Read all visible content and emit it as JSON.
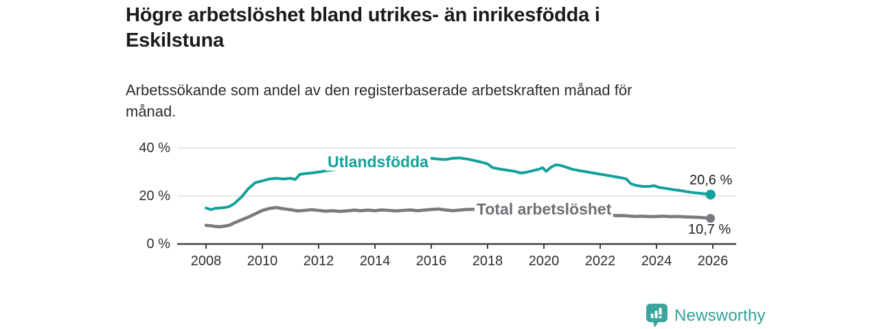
{
  "chart_data": {
    "type": "line",
    "title": "Högre arbetslöshet bland utrikes- än inrikesfödda i\nEskilstuna",
    "subtitle": "Arbetssökande som andel av den registerbaserade arbetskraften månad för\nmånad.",
    "grid": "horizontal",
    "legend_position": "inline-labels",
    "xlim": [
      2008,
      2026
    ],
    "ylim": [
      0,
      40
    ],
    "x_ticks": [
      2008,
      2010,
      2012,
      2014,
      2016,
      2018,
      2020,
      2022,
      2024,
      2026
    ],
    "y_ticks": [
      {
        "value": 0,
        "label": "0 %"
      },
      {
        "value": 20,
        "label": "20 %"
      },
      {
        "value": 40,
        "label": "40 %"
      }
    ],
    "series": [
      {
        "name": "Utlandsfödda",
        "color": "#12a19a",
        "end_value": 20.6,
        "end_label": "20,6 %",
        "points": [
          [
            2008.0,
            15.0
          ],
          [
            2008.17,
            14.3
          ],
          [
            2008.33,
            14.9
          ],
          [
            2008.5,
            15.0
          ],
          [
            2008.67,
            15.2
          ],
          [
            2008.83,
            15.6
          ],
          [
            2009.0,
            16.8
          ],
          [
            2009.25,
            19.5
          ],
          [
            2009.5,
            23.0
          ],
          [
            2009.75,
            25.6
          ],
          [
            2010.0,
            26.3
          ],
          [
            2010.25,
            27.1
          ],
          [
            2010.5,
            27.4
          ],
          [
            2010.75,
            27.1
          ],
          [
            2011.0,
            27.4
          ],
          [
            2011.17,
            26.9
          ],
          [
            2011.33,
            29.0
          ],
          [
            2011.5,
            29.3
          ],
          [
            2011.75,
            29.6
          ],
          [
            2012.0,
            30.0
          ],
          [
            2012.25,
            30.5
          ],
          [
            2012.5,
            30.9
          ],
          [
            2012.75,
            31.3
          ],
          [
            2013.0,
            31.7
          ],
          [
            2013.25,
            32.1
          ],
          [
            2013.5,
            32.5
          ],
          [
            2013.75,
            32.9
          ],
          [
            2014.0,
            33.3
          ],
          [
            2014.25,
            33.7
          ],
          [
            2014.5,
            34.1
          ],
          [
            2014.75,
            34.5
          ],
          [
            2015.0,
            34.8
          ],
          [
            2015.25,
            35.1
          ],
          [
            2015.5,
            35.3
          ],
          [
            2015.75,
            36.1
          ],
          [
            2016.0,
            35.7
          ],
          [
            2016.25,
            35.4
          ],
          [
            2016.5,
            35.2
          ],
          [
            2016.75,
            35.7
          ],
          [
            2017.0,
            35.9
          ],
          [
            2017.25,
            35.5
          ],
          [
            2017.5,
            34.9
          ],
          [
            2017.75,
            34.2
          ],
          [
            2018.0,
            33.4
          ],
          [
            2018.17,
            31.9
          ],
          [
            2018.33,
            31.5
          ],
          [
            2018.5,
            31.1
          ],
          [
            2018.75,
            30.7
          ],
          [
            2019.0,
            30.2
          ],
          [
            2019.17,
            29.6
          ],
          [
            2019.33,
            29.8
          ],
          [
            2019.58,
            30.5
          ],
          [
            2019.83,
            31.2
          ],
          [
            2019.95,
            31.8
          ],
          [
            2020.08,
            30.3
          ],
          [
            2020.25,
            32.0
          ],
          [
            2020.42,
            33.0
          ],
          [
            2020.58,
            32.8
          ],
          [
            2020.75,
            32.2
          ],
          [
            2021.0,
            31.2
          ],
          [
            2021.25,
            30.6
          ],
          [
            2021.5,
            30.1
          ],
          [
            2021.75,
            29.6
          ],
          [
            2022.0,
            29.1
          ],
          [
            2022.25,
            28.6
          ],
          [
            2022.5,
            28.1
          ],
          [
            2022.75,
            27.6
          ],
          [
            2022.92,
            27.2
          ],
          [
            2023.08,
            25.2
          ],
          [
            2023.25,
            24.5
          ],
          [
            2023.5,
            24.0
          ],
          [
            2023.75,
            24.0
          ],
          [
            2023.92,
            24.3
          ],
          [
            2024.08,
            23.6
          ],
          [
            2024.33,
            23.2
          ],
          [
            2024.58,
            22.7
          ],
          [
            2024.83,
            22.3
          ],
          [
            2025.08,
            21.8
          ],
          [
            2025.33,
            21.4
          ],
          [
            2025.58,
            21.1
          ],
          [
            2025.83,
            20.8
          ],
          [
            2025.92,
            20.6
          ]
        ]
      },
      {
        "name": "Total arbetslöshet",
        "color": "#797a7e",
        "label_color": "#6e6f74",
        "end_value": 10.7,
        "end_label": "10,7 %",
        "points": [
          [
            2008.0,
            7.8
          ],
          [
            2008.17,
            7.6
          ],
          [
            2008.33,
            7.3
          ],
          [
            2008.5,
            7.2
          ],
          [
            2008.67,
            7.5
          ],
          [
            2008.83,
            7.8
          ],
          [
            2009.0,
            8.8
          ],
          [
            2009.25,
            10.0
          ],
          [
            2009.5,
            11.2
          ],
          [
            2009.75,
            12.6
          ],
          [
            2010.0,
            14.0
          ],
          [
            2010.25,
            14.8
          ],
          [
            2010.5,
            15.2
          ],
          [
            2010.75,
            14.7
          ],
          [
            2011.0,
            14.3
          ],
          [
            2011.25,
            13.8
          ],
          [
            2011.5,
            14.0
          ],
          [
            2011.75,
            14.3
          ],
          [
            2012.0,
            14.0
          ],
          [
            2012.25,
            13.7
          ],
          [
            2012.5,
            13.9
          ],
          [
            2012.75,
            13.6
          ],
          [
            2013.0,
            13.8
          ],
          [
            2013.25,
            14.1
          ],
          [
            2013.5,
            13.9
          ],
          [
            2013.75,
            14.1
          ],
          [
            2014.0,
            13.9
          ],
          [
            2014.25,
            14.2
          ],
          [
            2014.5,
            14.0
          ],
          [
            2014.75,
            13.8
          ],
          [
            2015.0,
            14.0
          ],
          [
            2015.25,
            14.2
          ],
          [
            2015.5,
            13.9
          ],
          [
            2015.75,
            14.1
          ],
          [
            2016.0,
            14.4
          ],
          [
            2016.25,
            14.6
          ],
          [
            2016.5,
            14.2
          ],
          [
            2016.75,
            13.9
          ],
          [
            2017.0,
            14.1
          ],
          [
            2017.25,
            14.4
          ],
          [
            2017.5,
            14.5
          ],
          [
            2017.75,
            14.1
          ],
          [
            2018.0,
            13.9
          ],
          [
            2018.25,
            13.7
          ],
          [
            2018.5,
            13.5
          ],
          [
            2018.75,
            13.4
          ],
          [
            2019.0,
            13.2
          ],
          [
            2019.25,
            13.0
          ],
          [
            2019.5,
            13.1
          ],
          [
            2019.75,
            13.3
          ],
          [
            2020.0,
            13.5
          ],
          [
            2020.25,
            13.8
          ],
          [
            2020.5,
            13.6
          ],
          [
            2020.75,
            13.2
          ],
          [
            2021.0,
            12.9
          ],
          [
            2021.25,
            12.6
          ],
          [
            2021.5,
            12.4
          ],
          [
            2021.75,
            12.2
          ],
          [
            2022.0,
            12.1
          ],
          [
            2022.25,
            12.0
          ],
          [
            2022.42,
            12.0
          ],
          [
            2022.58,
            11.8
          ],
          [
            2022.75,
            11.9
          ],
          [
            2023.0,
            11.7
          ],
          [
            2023.25,
            11.5
          ],
          [
            2023.5,
            11.6
          ],
          [
            2023.75,
            11.4
          ],
          [
            2024.0,
            11.5
          ],
          [
            2024.25,
            11.6
          ],
          [
            2024.5,
            11.4
          ],
          [
            2024.75,
            11.5
          ],
          [
            2025.0,
            11.3
          ],
          [
            2025.25,
            11.2
          ],
          [
            2025.5,
            11.1
          ],
          [
            2025.75,
            10.9
          ],
          [
            2025.92,
            10.7
          ]
        ]
      }
    ],
    "axis_color": "#3d3e40",
    "gridline_color": "#d6d6d6"
  },
  "brand": {
    "name": "Newsworthy",
    "color": "#31a29a",
    "icon": "newsworthy-speech-bubble-barchart-icon",
    "icon_color": "#3aa79e"
  }
}
